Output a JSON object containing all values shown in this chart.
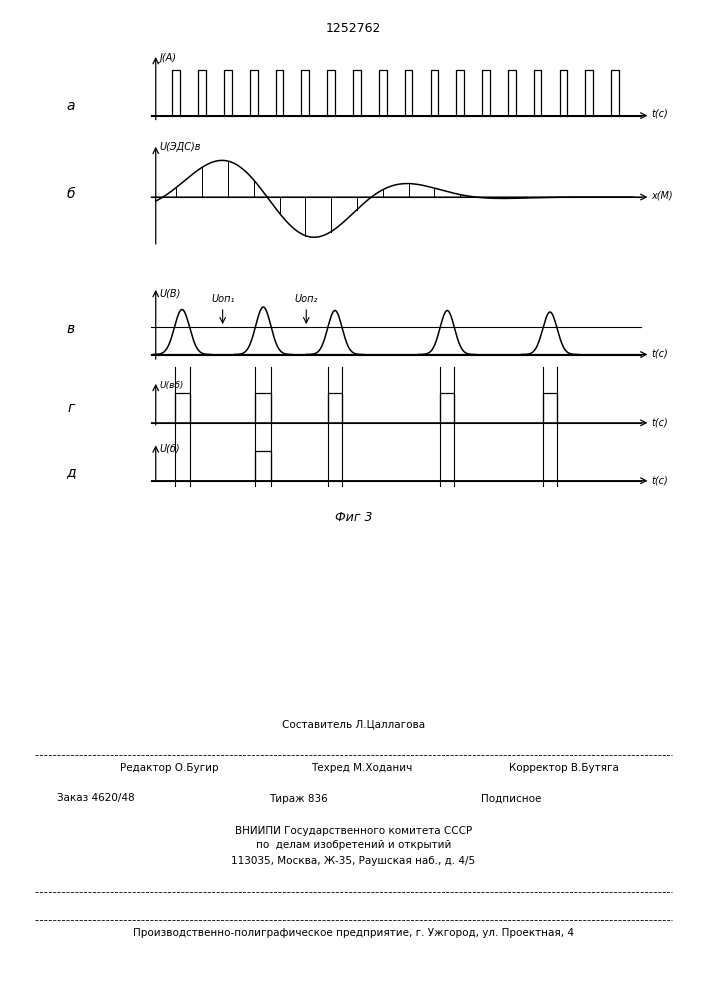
{
  "title": "1252762",
  "fig_caption": "Фиг 3",
  "panel_a_label": "а",
  "panel_b_label": "б",
  "panel_v_label": "в",
  "panel_g_label": "г",
  "panel_d_label": "д",
  "yaxis_a": "J(A)",
  "yaxis_b": "U(ЭДС)в",
  "yaxis_v": "U(В)",
  "yaxis_g": "U(вб)",
  "yaxis_d": "U(б)",
  "xaxis_a": "t(с)",
  "xaxis_b": "x(М)",
  "xaxis_v": "t(с)",
  "xaxis_g": "t(с)",
  "xaxis_d": "t(с)",
  "uop1_label": "Uоп₁",
  "uop2_label": "Uоп₂",
  "footer_line1": "Составитель Л.Цаллагова",
  "footer_ed": "Редактор О.Бугир",
  "footer_tech": "Техред М.Ходанич",
  "footer_corr": "Корректор В.Бутяга",
  "footer_order": "Заказ 4620/48",
  "footer_print": "Тираж 836",
  "footer_sub": "Подписное",
  "footer_line4": "ВНИИПИ Государственного комитета СССР",
  "footer_line5": "по  делам изобретений и открытий",
  "footer_line6": "113035, Москва, Ж-35, Раушская наб., д. 4/5",
  "footer_line7": "Производственно-полиграфическое предприятие, г. Ужгород, ул. Проектная, 4"
}
